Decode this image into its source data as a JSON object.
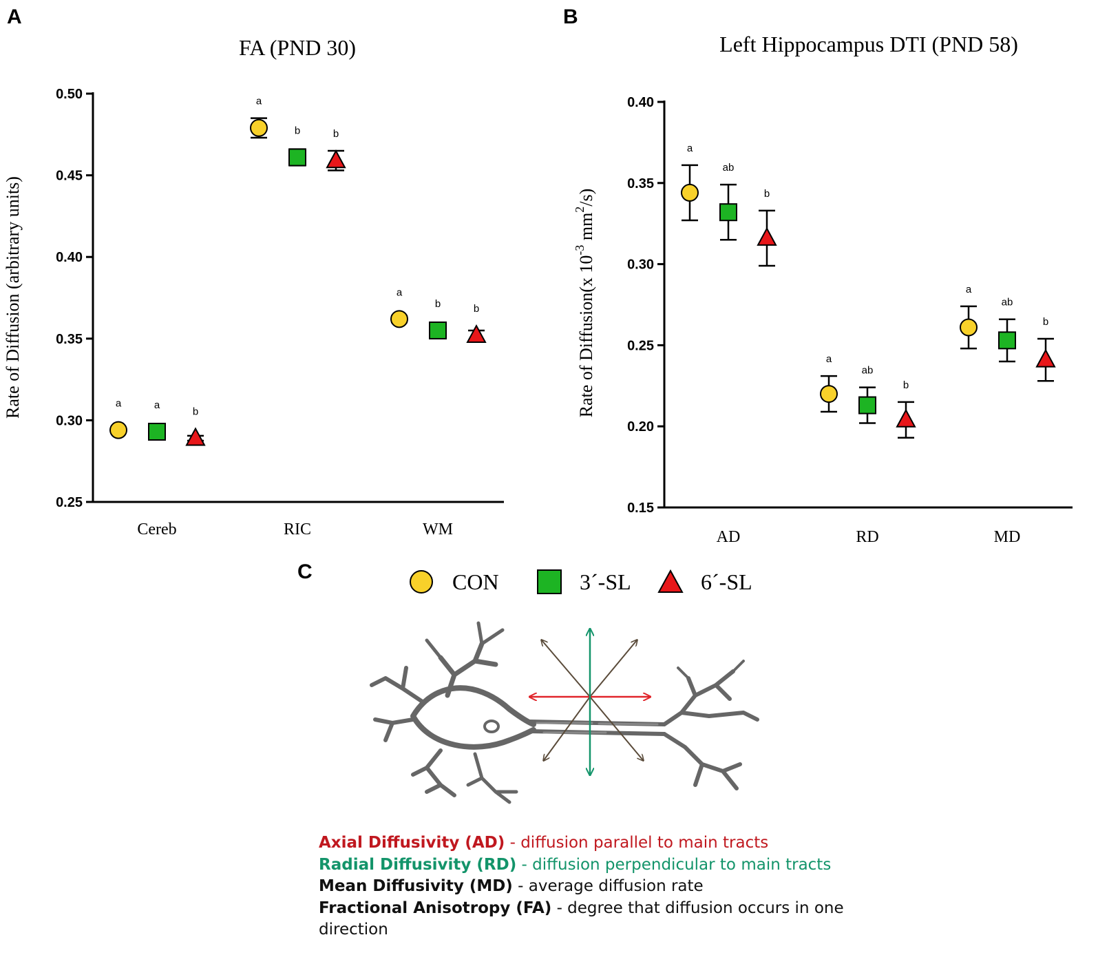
{
  "panels": {
    "a": "A",
    "b": "B",
    "c": "C"
  },
  "legend": [
    {
      "name": "CON",
      "shape": "circle",
      "color": "#F8D12A"
    },
    {
      "name": "3´-SL",
      "shape": "square",
      "color": "#1DB423"
    },
    {
      "name": "6´-SL",
      "shape": "triangle",
      "color": "#E8171A"
    }
  ],
  "chart_data": [
    {
      "type": "scatter",
      "title": "FA (PND 30)",
      "xlabel": "",
      "ylabel": "Rate of Diffusion (arbitrary units)",
      "ylim": [
        0.25,
        0.5
      ],
      "yticks": [
        "0.25",
        "0.30",
        "0.35",
        "0.40",
        "0.45",
        "0.50"
      ],
      "categories": [
        "Cereb",
        "RIC",
        "WM"
      ],
      "series": [
        {
          "name": "CON",
          "values": [
            0.294,
            0.479,
            0.362
          ],
          "err": [
            0.0015,
            0.006,
            0.002
          ],
          "labels": [
            "a",
            "a",
            "a"
          ]
        },
        {
          "name": "3´-SL",
          "values": [
            0.293,
            0.461,
            0.355
          ],
          "err": [
            0.0015,
            0.005,
            0.002
          ],
          "labels": [
            "a",
            "b",
            "b"
          ]
        },
        {
          "name": "6´-SL",
          "values": [
            0.289,
            0.459,
            0.352
          ],
          "err": [
            0.0015,
            0.006,
            0.003
          ],
          "labels": [
            "b",
            "b",
            "b"
          ]
        }
      ]
    },
    {
      "type": "scatter",
      "title": "Left Hippocampus DTI (PND 58)",
      "xlabel": "",
      "ylabel_main": "Rate of Diffusion(x 10",
      "ylabel_sup1": "-3",
      "ylabel_mid": " mm",
      "ylabel_sup2": "2",
      "ylabel_end": "/s)",
      "ylim": [
        0.15,
        0.4
      ],
      "yticks": [
        "0.15",
        "0.20",
        "0.25",
        "0.30",
        "0.35",
        "0.40"
      ],
      "categories": [
        "AD",
        "RD",
        "MD"
      ],
      "series": [
        {
          "name": "CON",
          "values": [
            0.344,
            0.22,
            0.261
          ],
          "err": [
            0.017,
            0.011,
            0.013
          ],
          "labels": [
            "a",
            "a",
            "a"
          ]
        },
        {
          "name": "3´-SL",
          "values": [
            0.332,
            0.213,
            0.253
          ],
          "err": [
            0.017,
            0.011,
            0.013
          ],
          "labels": [
            "ab",
            "ab",
            "ab"
          ]
        },
        {
          "name": "6´-SL",
          "values": [
            0.316,
            0.204,
            0.241
          ],
          "err": [
            0.017,
            0.011,
            0.013
          ],
          "labels": [
            "b",
            "b",
            "b"
          ]
        }
      ]
    }
  ],
  "definitions": [
    {
      "term": "Axial Diffusivity (AD)",
      "text": " - diffusion parallel to main tracts",
      "color": "#C0181F"
    },
    {
      "term": "Radial Diffusivity (RD)",
      "text": " - diffusion perpendicular to main tracts",
      "color": "#13946A"
    },
    {
      "term": "Mean Diffusivity (MD)",
      "text": " - average diffusion rate",
      "color": "#111111"
    },
    {
      "term": "Fractional Anisotropy (FA)",
      "text": " - degree that diffusion occurs in one direction",
      "color": "#111111"
    }
  ]
}
